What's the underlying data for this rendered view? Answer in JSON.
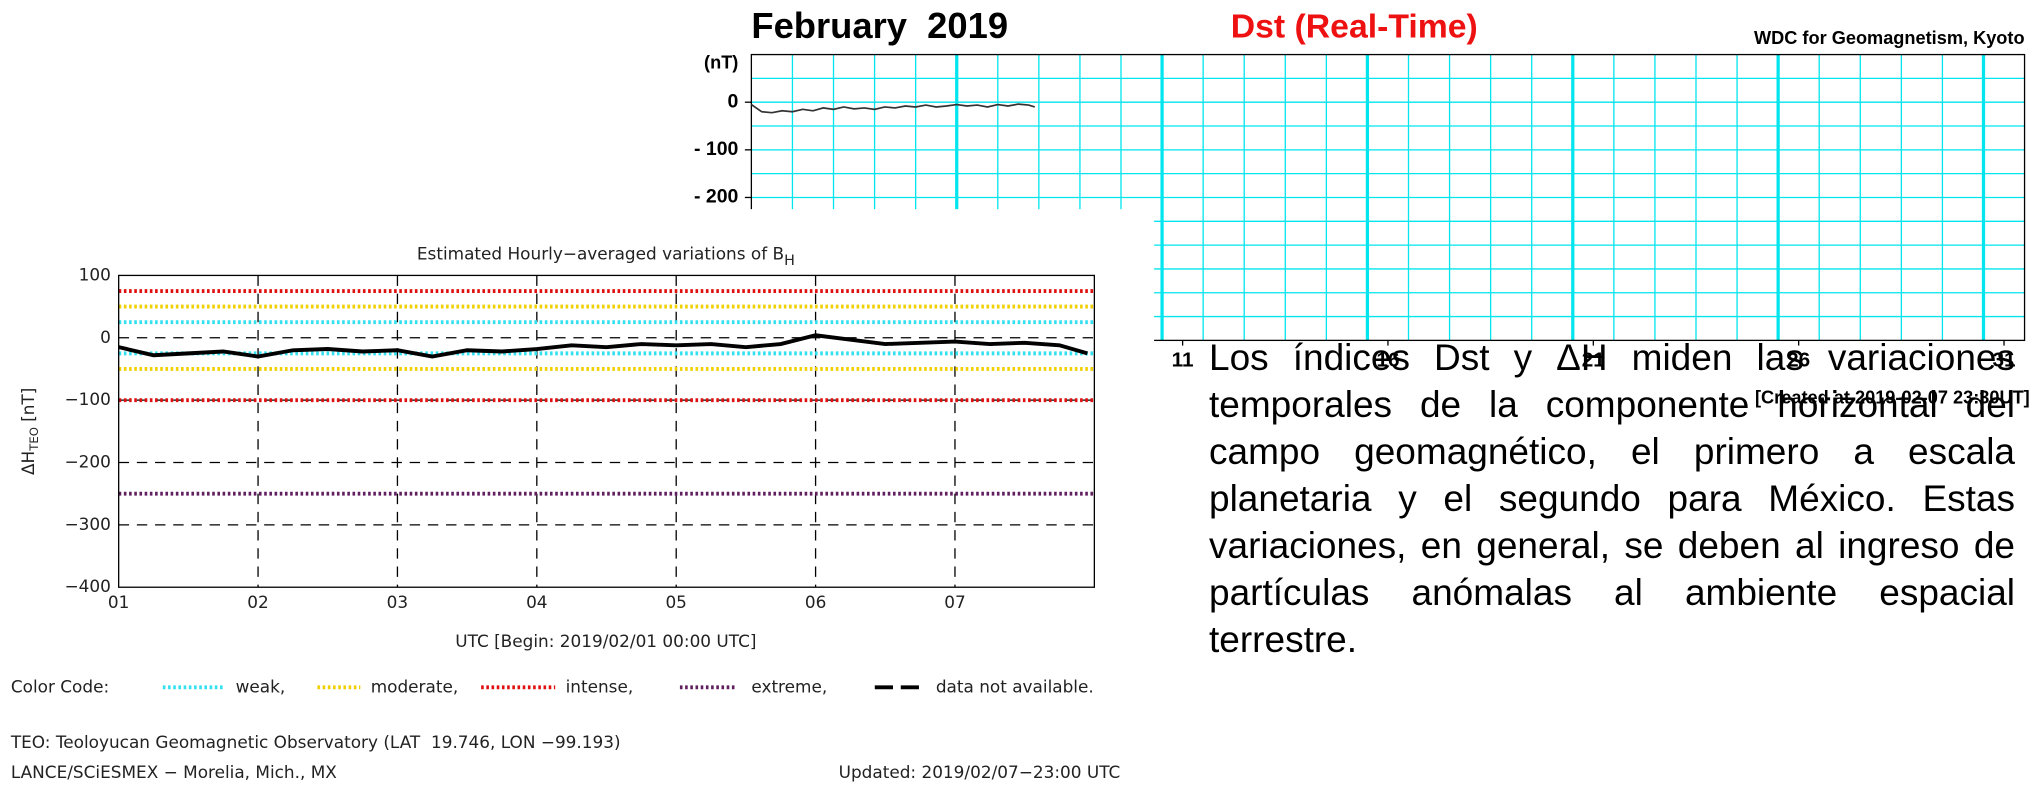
{
  "chart_data": [
    {
      "type": "line",
      "title": "February  2019",
      "subtitle": "Dst (Real-Time)",
      "source": "WDC for Geomagnetism, Kyoto",
      "ylabel": "(nT)",
      "note": "[Created at 2019-02-07 23:30UT]",
      "xlim": [
        0,
        31
      ],
      "xticks": [
        {
          "value": 10.5,
          "label": "11"
        },
        {
          "value": 15.5,
          "label": "16"
        },
        {
          "value": 20.5,
          "label": "21"
        },
        {
          "value": 25.5,
          "label": "26"
        },
        {
          "value": 30.5,
          "label": "31"
        }
      ],
      "xgrid": [
        1,
        2,
        3,
        4,
        5,
        6,
        7,
        8,
        9,
        10,
        11,
        12,
        13,
        14,
        15,
        16,
        17,
        18,
        19,
        20,
        21,
        22,
        23,
        24,
        25,
        26,
        27,
        28,
        29,
        30
      ],
      "xgrid_major": [
        5,
        10,
        15,
        20,
        25,
        30
      ],
      "ylim": [
        -500,
        100
      ],
      "yticks": [
        0,
        {
          "value": -100,
          "label": "- 100"
        },
        {
          "value": -200,
          "label": "- 200"
        }
      ],
      "ygrid": [
        50,
        0,
        -50,
        -100,
        -150,
        -200,
        -250,
        -300,
        -350,
        -400,
        -450
      ],
      "grid_color": "#00e5ee",
      "x": [
        0,
        0.25,
        0.5,
        0.75,
        1,
        1.25,
        1.5,
        1.75,
        2,
        2.25,
        2.5,
        2.75,
        3,
        3.25,
        3.5,
        3.75,
        4,
        4.25,
        4.5,
        4.75,
        5,
        5.25,
        5.5,
        5.75,
        6,
        6.25,
        6.5,
        6.75,
        6.9
      ],
      "series": [
        {
          "color": "#333333",
          "values": [
            -5,
            -20,
            -22,
            -18,
            -20,
            -15,
            -18,
            -12,
            -15,
            -10,
            -14,
            -12,
            -15,
            -10,
            -12,
            -8,
            -10,
            -6,
            -10,
            -8,
            -5,
            -8,
            -6,
            -10,
            -5,
            -8,
            -4,
            -6,
            -10
          ]
        }
      ]
    },
    {
      "type": "line",
      "title": "Estimated Hourly−averaged variations of B",
      "title_sub": "H",
      "ylabel": "ΔH",
      "ylabel_sub": "TEO",
      "ylabel_unit": "[nT]",
      "xlabel": "UTC [Begin: 2019/02/01 00:00 UTC]",
      "xlim": [
        1,
        8
      ],
      "xticks": [
        {
          "value": 1,
          "label": "01"
        },
        {
          "value": 2,
          "label": "02"
        },
        {
          "value": 3,
          "label": "03"
        },
        {
          "value": 4,
          "label": "04"
        },
        {
          "value": 5,
          "label": "05"
        },
        {
          "value": 6,
          "label": "06"
        },
        {
          "value": 7,
          "label": "07"
        }
      ],
      "ylim": [
        -400,
        100
      ],
      "yticks": [
        100,
        0,
        {
          "value": -100,
          "label": "−100"
        },
        {
          "value": -200,
          "label": "−200"
        },
        {
          "value": -300,
          "label": "−300"
        },
        {
          "value": -400,
          "label": "−400"
        }
      ],
      "thresholds": [
        {
          "name": "weak,",
          "color": "#33e0f0",
          "values": [
            25,
            -25
          ]
        },
        {
          "name": "moderate,",
          "color": "#f0d000",
          "values": [
            50,
            -50
          ]
        },
        {
          "name": "intense,",
          "color": "#e01010",
          "values": [
            75,
            -100
          ]
        },
        {
          "name": "extreme,",
          "color": "#602060",
          "values": [
            -250
          ]
        }
      ],
      "legend_title": "Color Code:",
      "missing_label": "data not available.",
      "x": [
        1,
        1.25,
        1.5,
        1.75,
        2,
        2.25,
        2.5,
        2.75,
        3,
        3.25,
        3.5,
        3.75,
        4,
        4.25,
        4.5,
        4.75,
        5,
        5.25,
        5.5,
        5.75,
        6,
        6.25,
        6.5,
        6.75,
        7,
        7.25,
        7.5,
        7.75,
        7.95
      ],
      "series": [
        {
          "color": "#000000",
          "values": [
            -15,
            -28,
            -25,
            -22,
            -30,
            -20,
            -18,
            -22,
            -20,
            -30,
            -20,
            -22,
            -18,
            -12,
            -15,
            -10,
            -12,
            -10,
            -15,
            -10,
            4,
            -3,
            -10,
            -8,
            -6,
            -10,
            -8,
            -12,
            -25
          ]
        }
      ]
    }
  ],
  "footer": {
    "observatory": "TEO: Teoloyucan Geomagnetic Observatory (LAT  19.746, LON −99.193)",
    "institution": "LANCE/SCiESMEX − Morelia, Mich., MX",
    "updated": "Updated: 2019/02/07−23:00 UTC"
  },
  "paragraph": "Los índices Dst y ΔH miden las variaciones temporales de la componente horizontal del campo geomagnético, el primero a escala planetaria y el segundo para México. Estas variaciones, en general, se deben al ingreso de partículas anómalas al ambiente espacial terrestre."
}
